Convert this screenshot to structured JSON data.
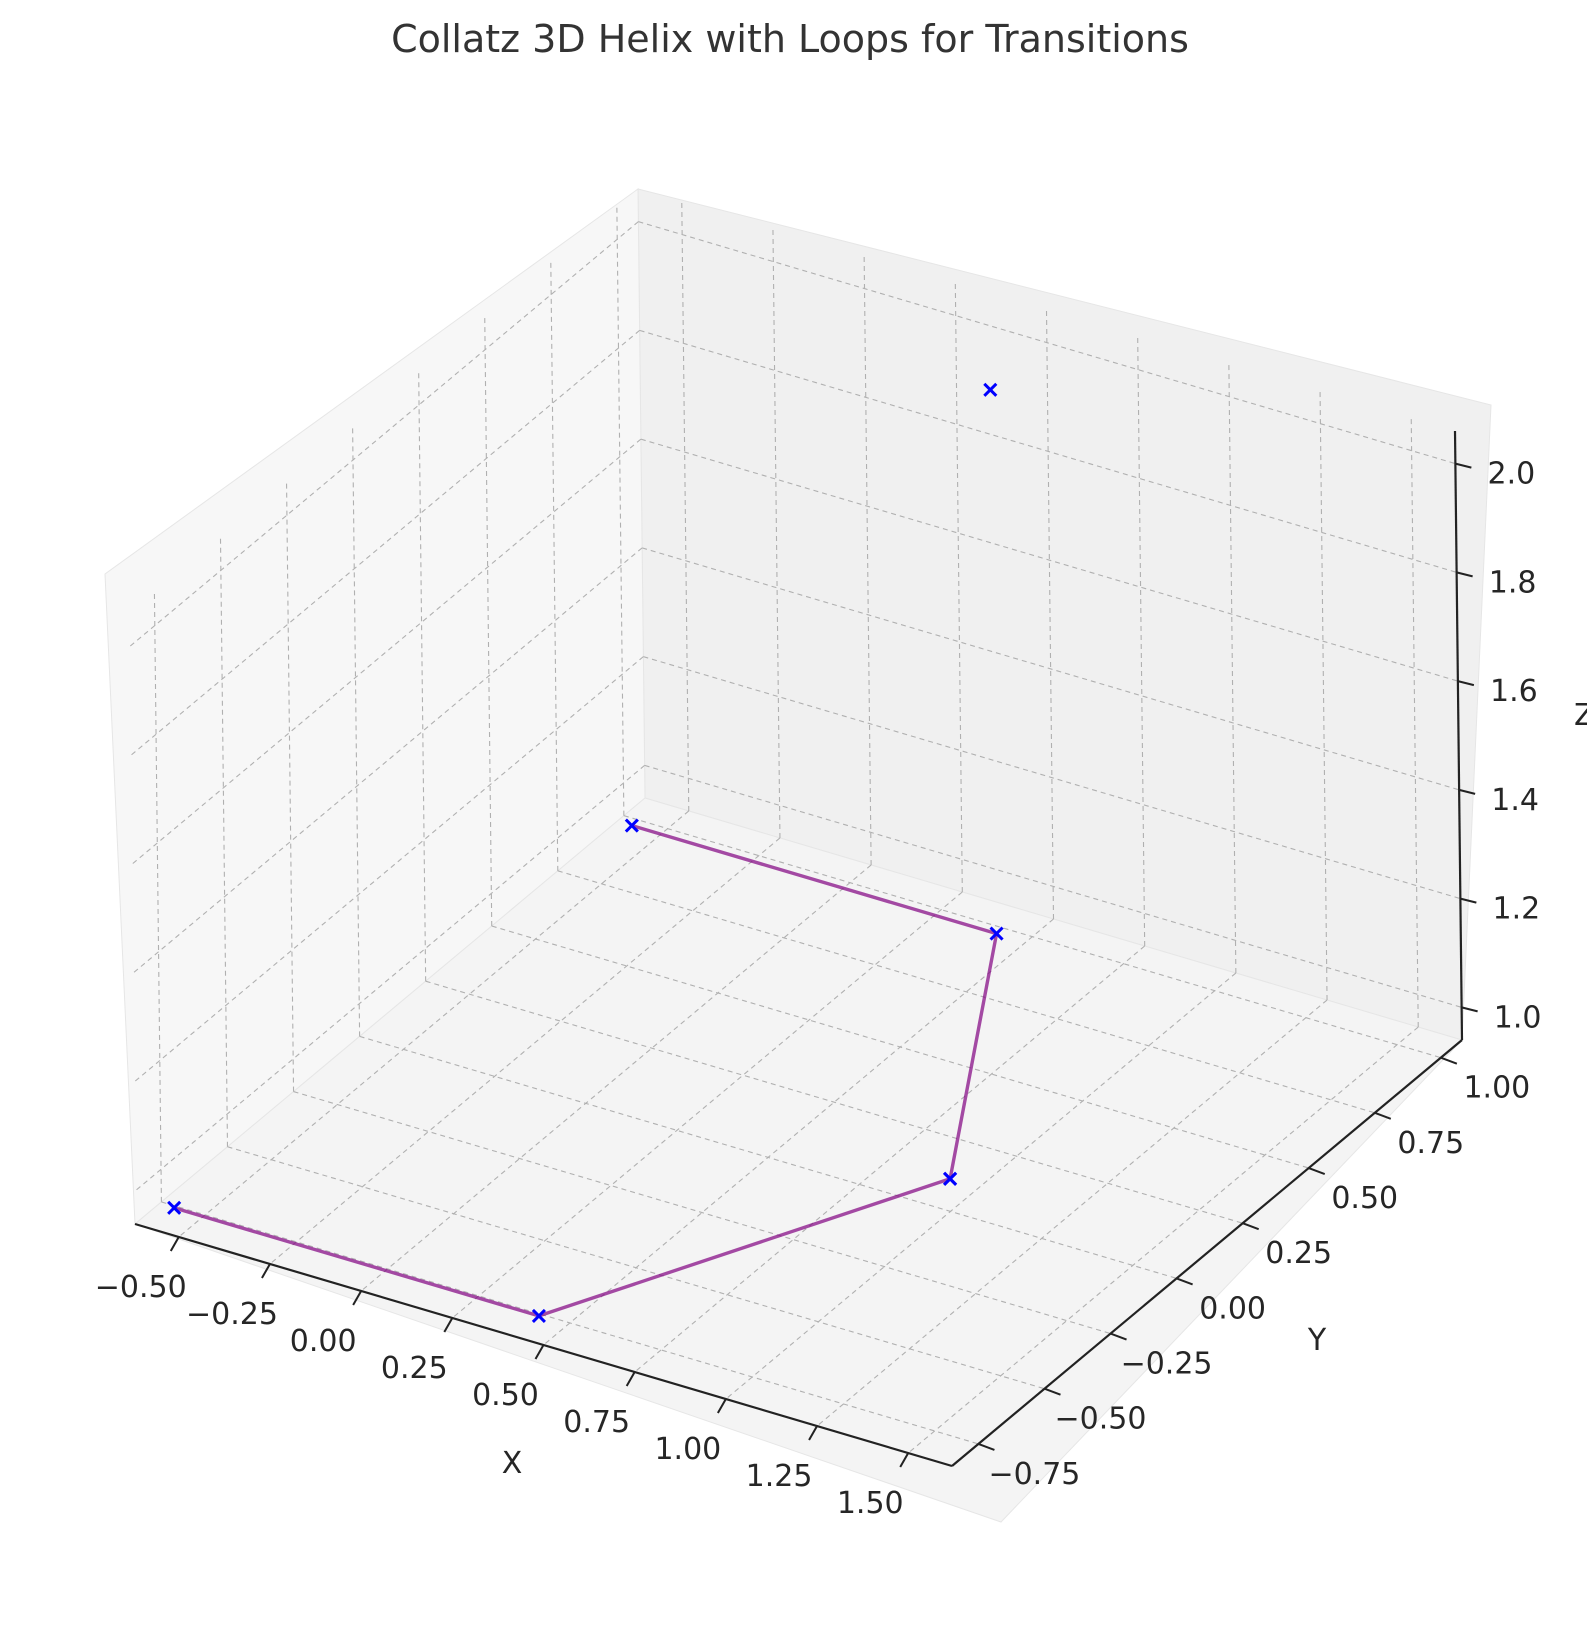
{
  "chart_data": {
    "type": "line3d",
    "title": "Collatz 3D Helix with Loops for Transitions",
    "xlabel": "X",
    "ylabel": "Y",
    "zlabel": "Z",
    "xlim": [
      -0.62,
      1.62
    ],
    "ylim": [
      -0.85,
      1.08
    ],
    "zlim": [
      0.94,
      2.06
    ],
    "xticks": [
      "−0.50",
      "−0.25",
      "0.00",
      "0.25",
      "0.50",
      "0.75",
      "1.00",
      "1.25",
      "1.50"
    ],
    "yticks": [
      "−0.75",
      "−0.50",
      "−0.25",
      "0.00",
      "0.25",
      "0.50",
      "0.75",
      "1.00"
    ],
    "zticks": [
      "1.0",
      "1.2",
      "1.4",
      "1.6",
      "1.8",
      "2.0"
    ],
    "grid": true,
    "colors": {
      "line": "#800080",
      "marker": "#0000ff",
      "pane": "#f2f2f2",
      "grid": "#b0b0b0"
    },
    "points": [
      {
        "x": 1.0,
        "y": 0.0,
        "z": 1.0
      },
      {
        "x": 0.5,
        "y": 0.866,
        "z": 1.0
      },
      {
        "x": -0.5,
        "y": 0.866,
        "z": 1.0
      },
      {
        "x": 1.0,
        "y": 0.0,
        "z": 1.0
      },
      {
        "x": 0.5,
        "y": -0.866,
        "z": 1.0
      },
      {
        "x": -0.5,
        "y": -0.866,
        "z": 1.0
      },
      {
        "x": 0.5,
        "y": 0.866,
        "z": 2.0
      }
    ],
    "segments": [
      [
        0,
        1
      ],
      [
        1,
        2
      ],
      [
        3,
        4
      ],
      [
        4,
        5
      ]
    ]
  }
}
